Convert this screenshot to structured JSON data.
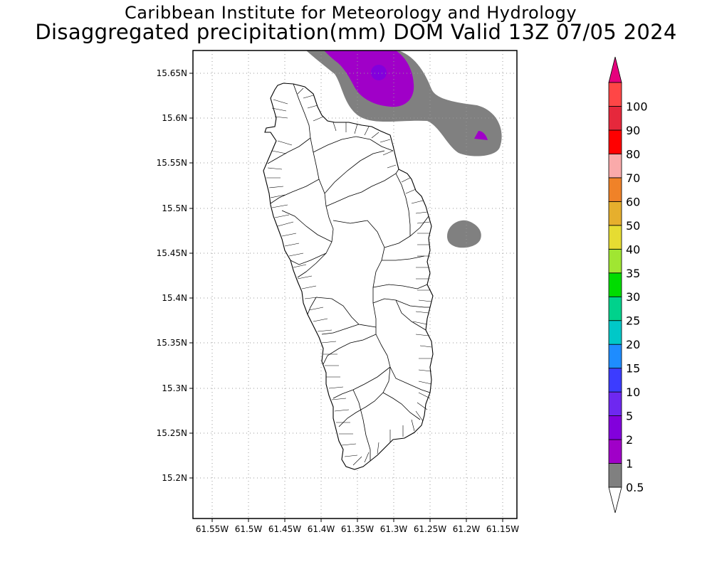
{
  "header": {
    "institution": "Caribbean Institute for Meteorology and Hydrology",
    "product": "Disaggregated precipitation(mm) DOM Valid 13Z 07/05 2024"
  },
  "map": {
    "lon_ticks": [
      "61.55W",
      "61.5W",
      "61.45W",
      "61.4W",
      "61.35W",
      "61.3W",
      "61.25W",
      "61.2W",
      "61.15W"
    ],
    "lat_ticks": [
      "15.65N",
      "15.6N",
      "15.55N",
      "15.5N",
      "15.45N",
      "15.4N",
      "15.35N",
      "15.3N",
      "15.25N",
      "15.2N"
    ],
    "grid": "dotted",
    "land_fill": "#ffffff",
    "outline_color": "#000000"
  },
  "colorbar": {
    "levels": [
      {
        "label": "0.5",
        "color": "#808080"
      },
      {
        "label": "1",
        "color": "#a000c8"
      },
      {
        "label": "2",
        "color": "#8200dc"
      },
      {
        "label": "5",
        "color": "#6e28f0"
      },
      {
        "label": "10",
        "color": "#3c3cff"
      },
      {
        "label": "15",
        "color": "#1e8cff"
      },
      {
        "label": "20",
        "color": "#00c8c8"
      },
      {
        "label": "25",
        "color": "#00d28c"
      },
      {
        "label": "30",
        "color": "#00dc00"
      },
      {
        "label": "35",
        "color": "#a0e632"
      },
      {
        "label": "40",
        "color": "#e6dc32"
      },
      {
        "label": "50",
        "color": "#e6af2d"
      },
      {
        "label": "60",
        "color": "#f08228"
      },
      {
        "label": "70",
        "color": "#faaaaa"
      },
      {
        "label": "80",
        "color": "#ff0000"
      },
      {
        "label": "90",
        "color": "#e6283c"
      },
      {
        "label": "100",
        "color": "#ff4646"
      }
    ],
    "top_arrow_color": "#e6007d",
    "bottom_arrow_color": "#ffffff"
  }
}
